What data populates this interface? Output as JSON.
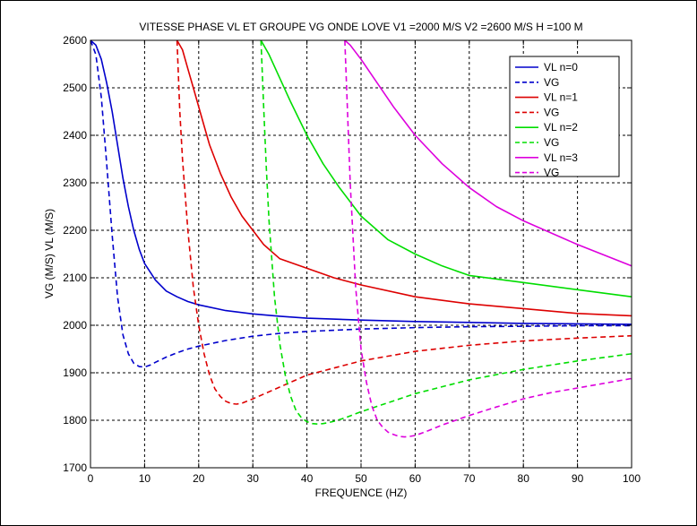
{
  "chart_data": {
    "type": "line",
    "title": "VITESSE PHASE VL ET GROUPE VG ONDE LOVE V1 =2000 M/S V2 =2600 M/S H =100 M",
    "xlabel": "FREQUENCE (HZ)",
    "ylabel": "VG (M/S) VL (M/S)",
    "xlim": [
      0,
      100
    ],
    "ylim": [
      1700,
      2600
    ],
    "xticks": [
      0,
      10,
      20,
      30,
      40,
      50,
      60,
      70,
      80,
      90,
      100
    ],
    "yticks": [
      1700,
      1800,
      1900,
      2000,
      2100,
      2200,
      2300,
      2400,
      2500,
      2600
    ],
    "grid": true,
    "legend_position": "top-right",
    "series": [
      {
        "name": "VL n=0",
        "color": "#0000cc",
        "dash": "solid",
        "x": [
          0,
          1,
          2,
          3,
          4,
          5,
          6,
          7,
          8,
          9,
          10,
          12,
          14,
          16,
          18,
          20,
          25,
          30,
          35,
          40,
          50,
          60,
          70,
          80,
          90,
          100
        ],
        "y": [
          2600,
          2590,
          2560,
          2510,
          2450,
          2380,
          2310,
          2250,
          2200,
          2160,
          2130,
          2095,
          2072,
          2060,
          2050,
          2043,
          2031,
          2024,
          2019,
          2015,
          2011,
          2008,
          2006,
          2004,
          2003,
          2002
        ]
      },
      {
        "name": "VG",
        "color": "#0000cc",
        "dash": "dashed",
        "x": [
          0,
          1,
          2,
          3,
          4,
          5,
          6,
          7,
          8,
          9,
          10,
          11,
          12,
          14,
          16,
          18,
          20,
          25,
          30,
          35,
          40,
          50,
          60,
          70,
          80,
          90,
          100
        ],
        "y": [
          2600,
          2570,
          2480,
          2340,
          2190,
          2060,
          1980,
          1940,
          1920,
          1913,
          1912,
          1916,
          1922,
          1933,
          1942,
          1950,
          1956,
          1968,
          1977,
          1983,
          1987,
          1992,
          1995,
          1997,
          1998,
          1999,
          1999
        ]
      },
      {
        "name": "VL n=1",
        "color": "#dd0000",
        "dash": "solid",
        "x": [
          16,
          17,
          18,
          19,
          20,
          21,
          22,
          24,
          26,
          28,
          30,
          32,
          35,
          40,
          45,
          50,
          60,
          70,
          80,
          90,
          100
        ],
        "y": [
          2600,
          2580,
          2540,
          2500,
          2460,
          2420,
          2380,
          2320,
          2270,
          2230,
          2200,
          2170,
          2140,
          2120,
          2100,
          2085,
          2060,
          2045,
          2035,
          2025,
          2020
        ]
      },
      {
        "name": "VG",
        "color": "#dd0000",
        "dash": "dashed",
        "x": [
          16,
          16.5,
          17,
          18,
          19,
          20,
          21,
          22,
          23,
          24,
          25,
          26,
          27,
          28,
          30,
          35,
          40,
          45,
          50,
          60,
          70,
          80,
          90,
          100
        ],
        "y": [
          2600,
          2450,
          2350,
          2200,
          2080,
          2000,
          1940,
          1895,
          1866,
          1850,
          1840,
          1835,
          1834,
          1836,
          1845,
          1870,
          1895,
          1910,
          1925,
          1945,
          1958,
          1967,
          1973,
          1978
        ]
      },
      {
        "name": "VL n=2",
        "color": "#00dd00",
        "dash": "solid",
        "x": [
          31.5,
          33,
          35,
          37,
          40,
          43,
          46,
          50,
          55,
          60,
          65,
          70,
          80,
          90,
          100
        ],
        "y": [
          2600,
          2570,
          2520,
          2470,
          2400,
          2340,
          2290,
          2230,
          2180,
          2150,
          2125,
          2105,
          2090,
          2075,
          2060
        ]
      },
      {
        "name": "VG",
        "color": "#00dd00",
        "dash": "dashed",
        "x": [
          31.5,
          32,
          32.5,
          33,
          34,
          35,
          36,
          37,
          38,
          39,
          40,
          41,
          42,
          43,
          44,
          45,
          47,
          50,
          55,
          60,
          70,
          80,
          90,
          100
        ],
        "y": [
          2600,
          2460,
          2330,
          2220,
          2060,
          1960,
          1895,
          1850,
          1820,
          1805,
          1797,
          1793,
          1792,
          1793,
          1795,
          1798,
          1805,
          1818,
          1837,
          1856,
          1885,
          1907,
          1925,
          1940
        ]
      },
      {
        "name": "VL n=3",
        "color": "#dd00dd",
        "dash": "solid",
        "x": [
          47,
          48,
          50,
          53,
          56,
          60,
          65,
          70,
          75,
          80,
          90,
          100
        ],
        "y": [
          2600,
          2590,
          2560,
          2510,
          2460,
          2400,
          2340,
          2290,
          2250,
          2220,
          2170,
          2125
        ]
      },
      {
        "name": "VG",
        "color": "#dd00dd",
        "dash": "dashed",
        "x": [
          47,
          47.5,
          48,
          49,
          50,
          51,
          52,
          53,
          54,
          55,
          56,
          57,
          58,
          59,
          60,
          62,
          65,
          70,
          75,
          80,
          85,
          90,
          95,
          100
        ],
        "y": [
          2600,
          2450,
          2300,
          2080,
          1950,
          1880,
          1830,
          1800,
          1785,
          1775,
          1770,
          1766,
          1765,
          1766,
          1768,
          1776,
          1790,
          1810,
          1828,
          1845,
          1858,
          1868,
          1878,
          1888
        ]
      }
    ]
  }
}
